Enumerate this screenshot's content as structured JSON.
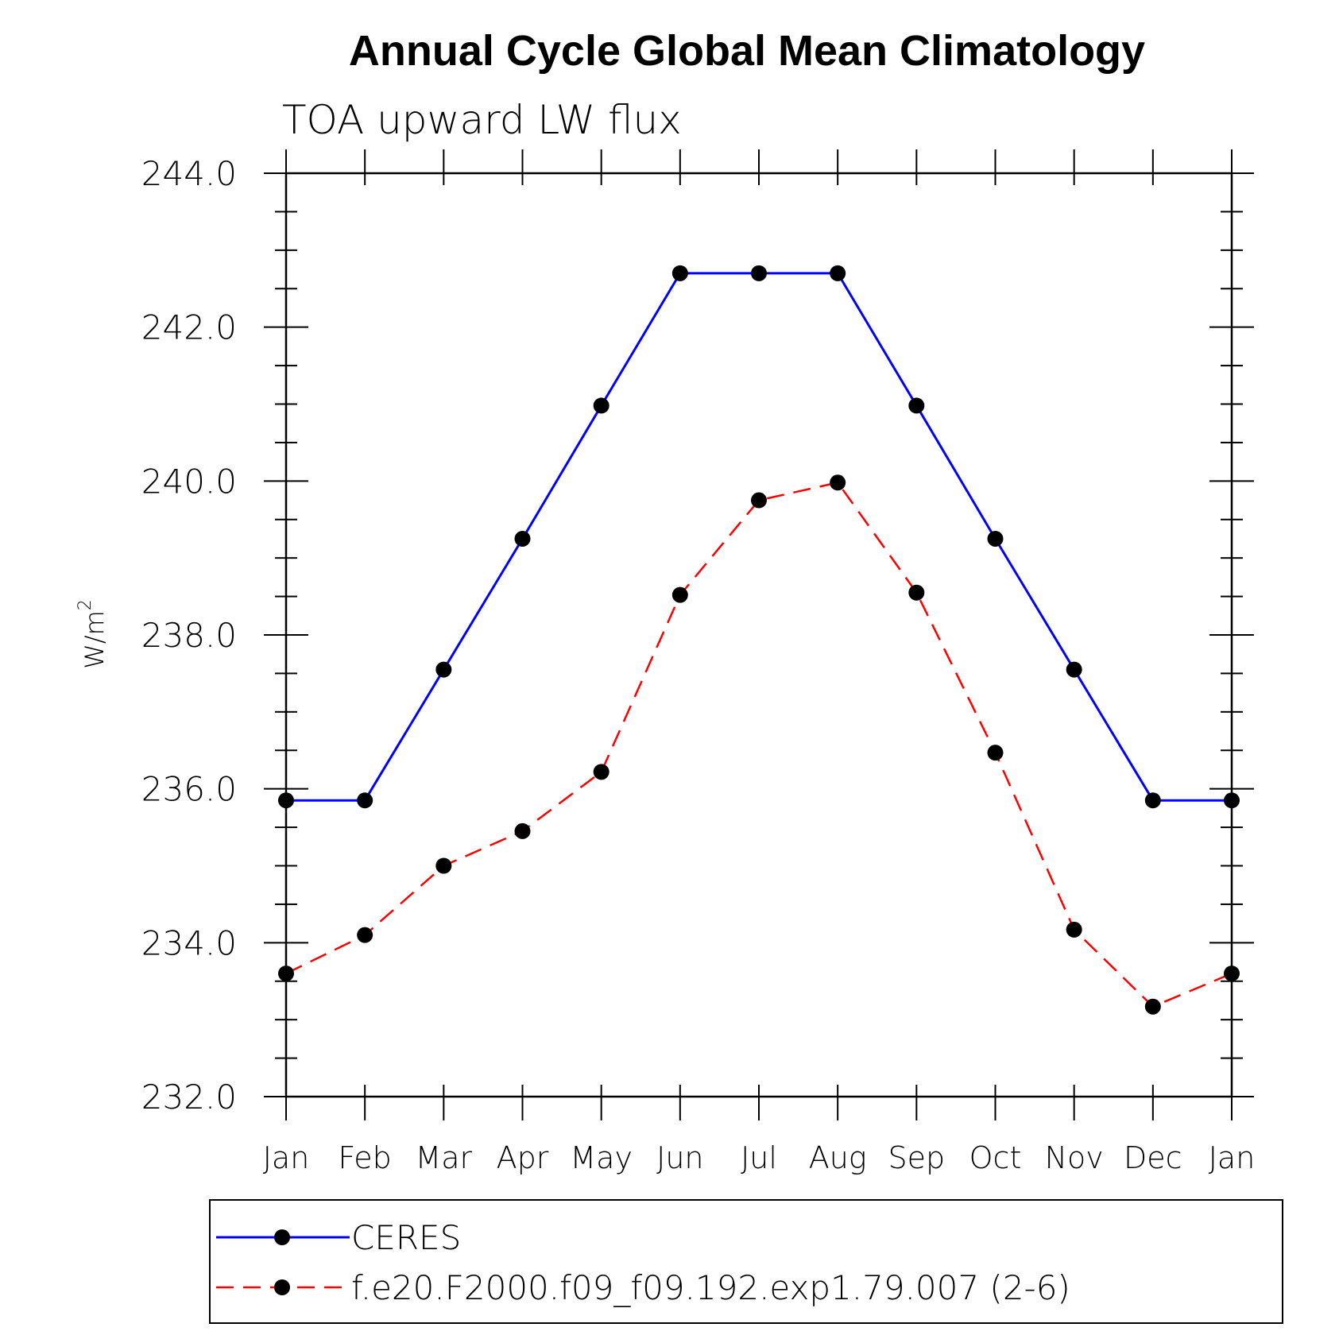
{
  "chart_data": {
    "type": "line",
    "title": "Annual Cycle Global Mean Climatology",
    "subtitle": "TOA upward LW flux",
    "ylabel": "W/m",
    "ylabel_superscript": "2",
    "xlabel": "",
    "categories": [
      "Jan",
      "Feb",
      "Mar",
      "Apr",
      "May",
      "Jun",
      "Jul",
      "Aug",
      "Sep",
      "Oct",
      "Nov",
      "Dec",
      "Jan"
    ],
    "ylim": [
      232.0,
      244.0
    ],
    "yticks": [
      "232.0",
      "234.0",
      "236.0",
      "238.0",
      "240.0",
      "242.0",
      "244.0"
    ],
    "series": [
      {
        "name": "CERES",
        "color": "#0000ff",
        "style": "solid",
        "marker": "filled-circle",
        "values": [
          235.85,
          235.85,
          237.55,
          239.25,
          240.98,
          242.7,
          242.7,
          242.7,
          240.98,
          239.25,
          237.55,
          235.85,
          235.85
        ]
      },
      {
        "name": "f.e20.F2000.f09_f09.192.exp1.79.007 (2-6)",
        "color": "#ff0000",
        "style": "dashed",
        "marker": "filled-circle",
        "values": [
          233.6,
          234.1,
          235.0,
          235.45,
          236.22,
          238.52,
          239.75,
          239.98,
          238.55,
          236.47,
          234.17,
          233.17,
          233.6
        ]
      }
    ],
    "legend_position": "bottom"
  }
}
